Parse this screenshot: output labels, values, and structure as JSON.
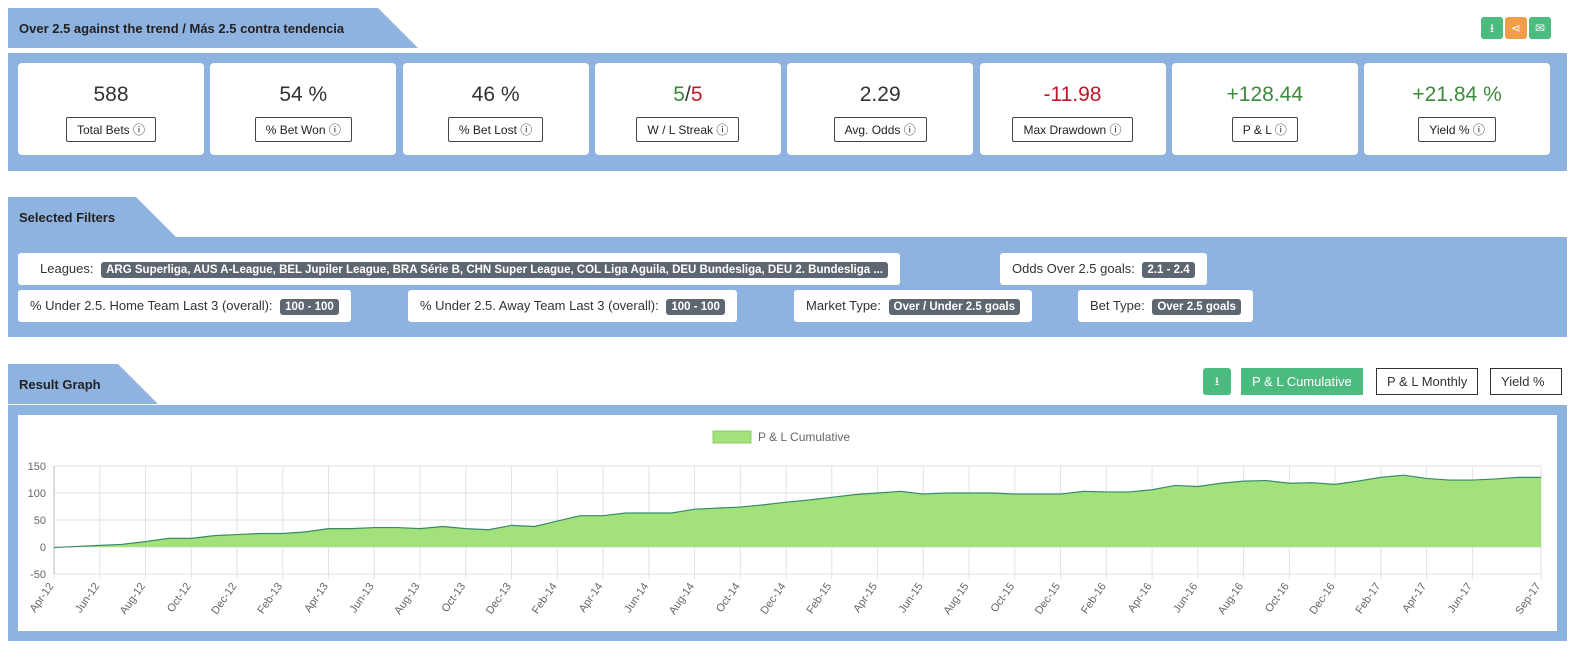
{
  "header": {
    "title": "Over 2.5 against the trend / Más 2.5 contra tendencia",
    "icons": [
      "download-icon",
      "share-icon",
      "envelope-icon"
    ]
  },
  "stats": [
    {
      "value": "588",
      "label": "Total Bets"
    },
    {
      "value": "54 %",
      "label": "% Bet Won"
    },
    {
      "value": "46 %",
      "label": "% Bet Lost"
    },
    {
      "win": "5",
      "sep": "/",
      "loss": "5",
      "label": "W / L Streak"
    },
    {
      "value": "2.29",
      "label": "Avg. Odds"
    },
    {
      "value": "-11.98",
      "label": "Max Drawdown",
      "color": "red"
    },
    {
      "value": "+128.44",
      "label": "P & L",
      "color": "green"
    },
    {
      "value": "+21.84 %",
      "label": "Yield %",
      "color": "green"
    }
  ],
  "filters": {
    "title": "Selected Filters",
    "items": [
      {
        "label": "Leagues:",
        "value": "ARG Superliga, AUS A-League, BEL Jupiler League, BRA Série B, CHN Super League, COL Liga Aguila, DEU Bundesliga, DEU 2. Bundesliga ..."
      },
      {
        "label": "Odds Over 2.5 goals:",
        "value": "2.1 - 2.4"
      },
      {
        "label": "% Under 2.5. Home Team Last 3 (overall):",
        "value": "100 - 100"
      },
      {
        "label": "% Under 2.5. Away Team Last 3 (overall):",
        "value": "100 - 100"
      },
      {
        "label": "Market Type:",
        "value": "Over / Under 2.5 goals"
      },
      {
        "label": "Bet Type:",
        "value": "Over 2.5 goals"
      }
    ]
  },
  "graph": {
    "title": "Result Graph",
    "tabs": [
      "P & L Cumulative",
      "P & L Monthly",
      "Yield %"
    ],
    "active": 0
  },
  "chart_data": {
    "type": "area",
    "legend": "P & L Cumulative",
    "legend_position": "top",
    "fill": "#a3e27a",
    "line": "#3a8a6a",
    "ylim": [
      -50,
      150
    ],
    "yticks": [
      -50,
      0,
      50,
      100,
      150
    ],
    "grid": true,
    "x_labels": [
      "Apr-12",
      "Jun-12",
      "Aug-12",
      "Oct-12",
      "Dec-12",
      "Feb-13",
      "Apr-13",
      "Jun-13",
      "Aug-13",
      "Oct-13",
      "Dec-13",
      "Feb-14",
      "Apr-14",
      "Jun-14",
      "Aug-14",
      "Oct-14",
      "Dec-14",
      "Feb-15",
      "Apr-15",
      "Jun-15",
      "Aug-15",
      "Oct-15",
      "Dec-15",
      "Feb-16",
      "Apr-16",
      "Jun-16",
      "Aug-16",
      "Oct-16",
      "Dec-16",
      "Feb-17",
      "Apr-17",
      "Jun-17",
      "Sep-17"
    ],
    "x_start": "Apr-12",
    "x_end": "Sep-17",
    "frequency": "monthly",
    "values": [
      -1,
      1,
      3,
      5,
      10,
      16,
      16,
      21,
      23,
      25,
      25,
      28,
      34,
      34,
      36,
      36,
      34,
      38,
      34,
      32,
      40,
      38,
      48,
      58,
      58,
      63,
      63,
      63,
      70,
      72,
      74,
      78,
      83,
      87,
      92,
      97,
      100,
      103,
      98,
      100,
      100,
      100,
      98,
      98,
      98,
      103,
      102,
      102,
      106,
      114,
      112,
      118,
      122,
      123,
      118,
      119,
      116,
      122,
      129,
      133,
      127,
      124,
      124,
      126,
      129,
      129
    ]
  }
}
